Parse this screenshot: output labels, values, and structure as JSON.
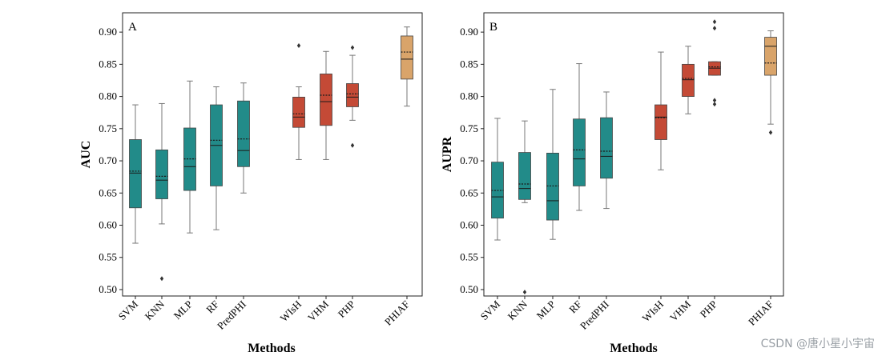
{
  "colors": {
    "teal": "#228b89",
    "red": "#c44a36",
    "tan": "#d9a46a",
    "outline": "#444444",
    "whisker": "#777777"
  },
  "chart_data": [
    {
      "type": "box",
      "panel_label": "A",
      "ylabel": "AUC",
      "xlabel": "Methods",
      "ylim": [
        0.49,
        0.93
      ],
      "yticks": [
        "0.90",
        "0.85",
        "0.80",
        "0.75",
        "0.70",
        "0.65",
        "0.60",
        "0.55",
        "0.50"
      ],
      "categories": [
        "SVM",
        "KNN",
        "MLP",
        "RF",
        "PredPHI",
        "WIsH",
        "VHM",
        "PHP",
        "PHIAF"
      ],
      "series": [
        {
          "name": "SVM",
          "color": "teal",
          "min": 0.572,
          "q1": 0.627,
          "median": 0.681,
          "mean": 0.684,
          "q3": 0.733,
          "max": 0.787,
          "outliers": []
        },
        {
          "name": "KNN",
          "color": "teal",
          "min": 0.602,
          "q1": 0.641,
          "median": 0.67,
          "mean": 0.676,
          "q3": 0.717,
          "max": 0.789,
          "outliers": [
            0.517
          ]
        },
        {
          "name": "MLP",
          "color": "teal",
          "min": 0.588,
          "q1": 0.654,
          "median": 0.691,
          "mean": 0.703,
          "q3": 0.751,
          "max": 0.824,
          "outliers": []
        },
        {
          "name": "RF",
          "color": "teal",
          "min": 0.593,
          "q1": 0.661,
          "median": 0.724,
          "mean": 0.732,
          "q3": 0.787,
          "max": 0.815,
          "outliers": []
        },
        {
          "name": "PredPHI",
          "color": "teal",
          "min": 0.65,
          "q1": 0.691,
          "median": 0.716,
          "mean": 0.734,
          "q3": 0.793,
          "max": 0.821,
          "outliers": []
        },
        {
          "name": "WIsH",
          "color": "red",
          "min": 0.702,
          "q1": 0.752,
          "median": 0.768,
          "mean": 0.773,
          "q3": 0.799,
          "max": 0.815,
          "outliers": [
            0.879
          ]
        },
        {
          "name": "VHM",
          "color": "red",
          "min": 0.702,
          "q1": 0.755,
          "median": 0.792,
          "mean": 0.802,
          "q3": 0.835,
          "max": 0.87,
          "outliers": []
        },
        {
          "name": "PHP",
          "color": "red",
          "min": 0.763,
          "q1": 0.784,
          "median": 0.799,
          "mean": 0.804,
          "q3": 0.82,
          "max": 0.864,
          "outliers": [
            0.724,
            0.876
          ]
        },
        {
          "name": "PHIAF",
          "color": "tan",
          "min": 0.785,
          "q1": 0.827,
          "median": 0.858,
          "mean": 0.869,
          "q3": 0.894,
          "max": 0.908,
          "outliers": []
        }
      ]
    },
    {
      "type": "box",
      "panel_label": "B",
      "ylabel": "AUPR",
      "xlabel": "Methods",
      "ylim": [
        0.49,
        0.93
      ],
      "yticks": [
        "0.90",
        "0.85",
        "0.80",
        "0.75",
        "0.70",
        "0.65",
        "0.60",
        "0.55",
        "0.50"
      ],
      "categories": [
        "SVM",
        "KNN",
        "MLP",
        "RF",
        "PredPHI",
        "WIsH",
        "VHM",
        "PHP",
        "PHIAF"
      ],
      "series": [
        {
          "name": "SVM",
          "color": "teal",
          "min": 0.577,
          "q1": 0.611,
          "median": 0.644,
          "mean": 0.654,
          "q3": 0.698,
          "max": 0.766,
          "outliers": []
        },
        {
          "name": "KNN",
          "color": "teal",
          "min": 0.635,
          "q1": 0.64,
          "median": 0.657,
          "mean": 0.664,
          "q3": 0.713,
          "max": 0.762,
          "outliers": [
            0.496
          ]
        },
        {
          "name": "MLP",
          "color": "teal",
          "min": 0.578,
          "q1": 0.608,
          "median": 0.638,
          "mean": 0.661,
          "q3": 0.712,
          "max": 0.811,
          "outliers": []
        },
        {
          "name": "RF",
          "color": "teal",
          "min": 0.623,
          "q1": 0.661,
          "median": 0.703,
          "mean": 0.717,
          "q3": 0.765,
          "max": 0.851,
          "outliers": []
        },
        {
          "name": "PredPHI",
          "color": "teal",
          "min": 0.626,
          "q1": 0.673,
          "median": 0.707,
          "mean": 0.715,
          "q3": 0.767,
          "max": 0.807,
          "outliers": []
        },
        {
          "name": "WIsH",
          "color": "red",
          "min": 0.686,
          "q1": 0.733,
          "median": 0.768,
          "mean": 0.767,
          "q3": 0.787,
          "max": 0.869,
          "outliers": []
        },
        {
          "name": "VHM",
          "color": "red",
          "min": 0.773,
          "q1": 0.8,
          "median": 0.826,
          "mean": 0.828,
          "q3": 0.85,
          "max": 0.878,
          "outliers": []
        },
        {
          "name": "PHP",
          "color": "red",
          "min": 0.833,
          "q1": 0.833,
          "median": 0.844,
          "mean": 0.846,
          "q3": 0.854,
          "max": 0.854,
          "outliers": [
            0.788,
            0.794,
            0.906,
            0.916
          ]
        },
        {
          "name": "PHIAF",
          "color": "tan",
          "min": 0.757,
          "q1": 0.833,
          "median": 0.878,
          "mean": 0.852,
          "q3": 0.892,
          "max": 0.902,
          "outliers": [
            0.744
          ]
        }
      ]
    }
  ],
  "watermark": "CSDN @唐小星小宇宙"
}
